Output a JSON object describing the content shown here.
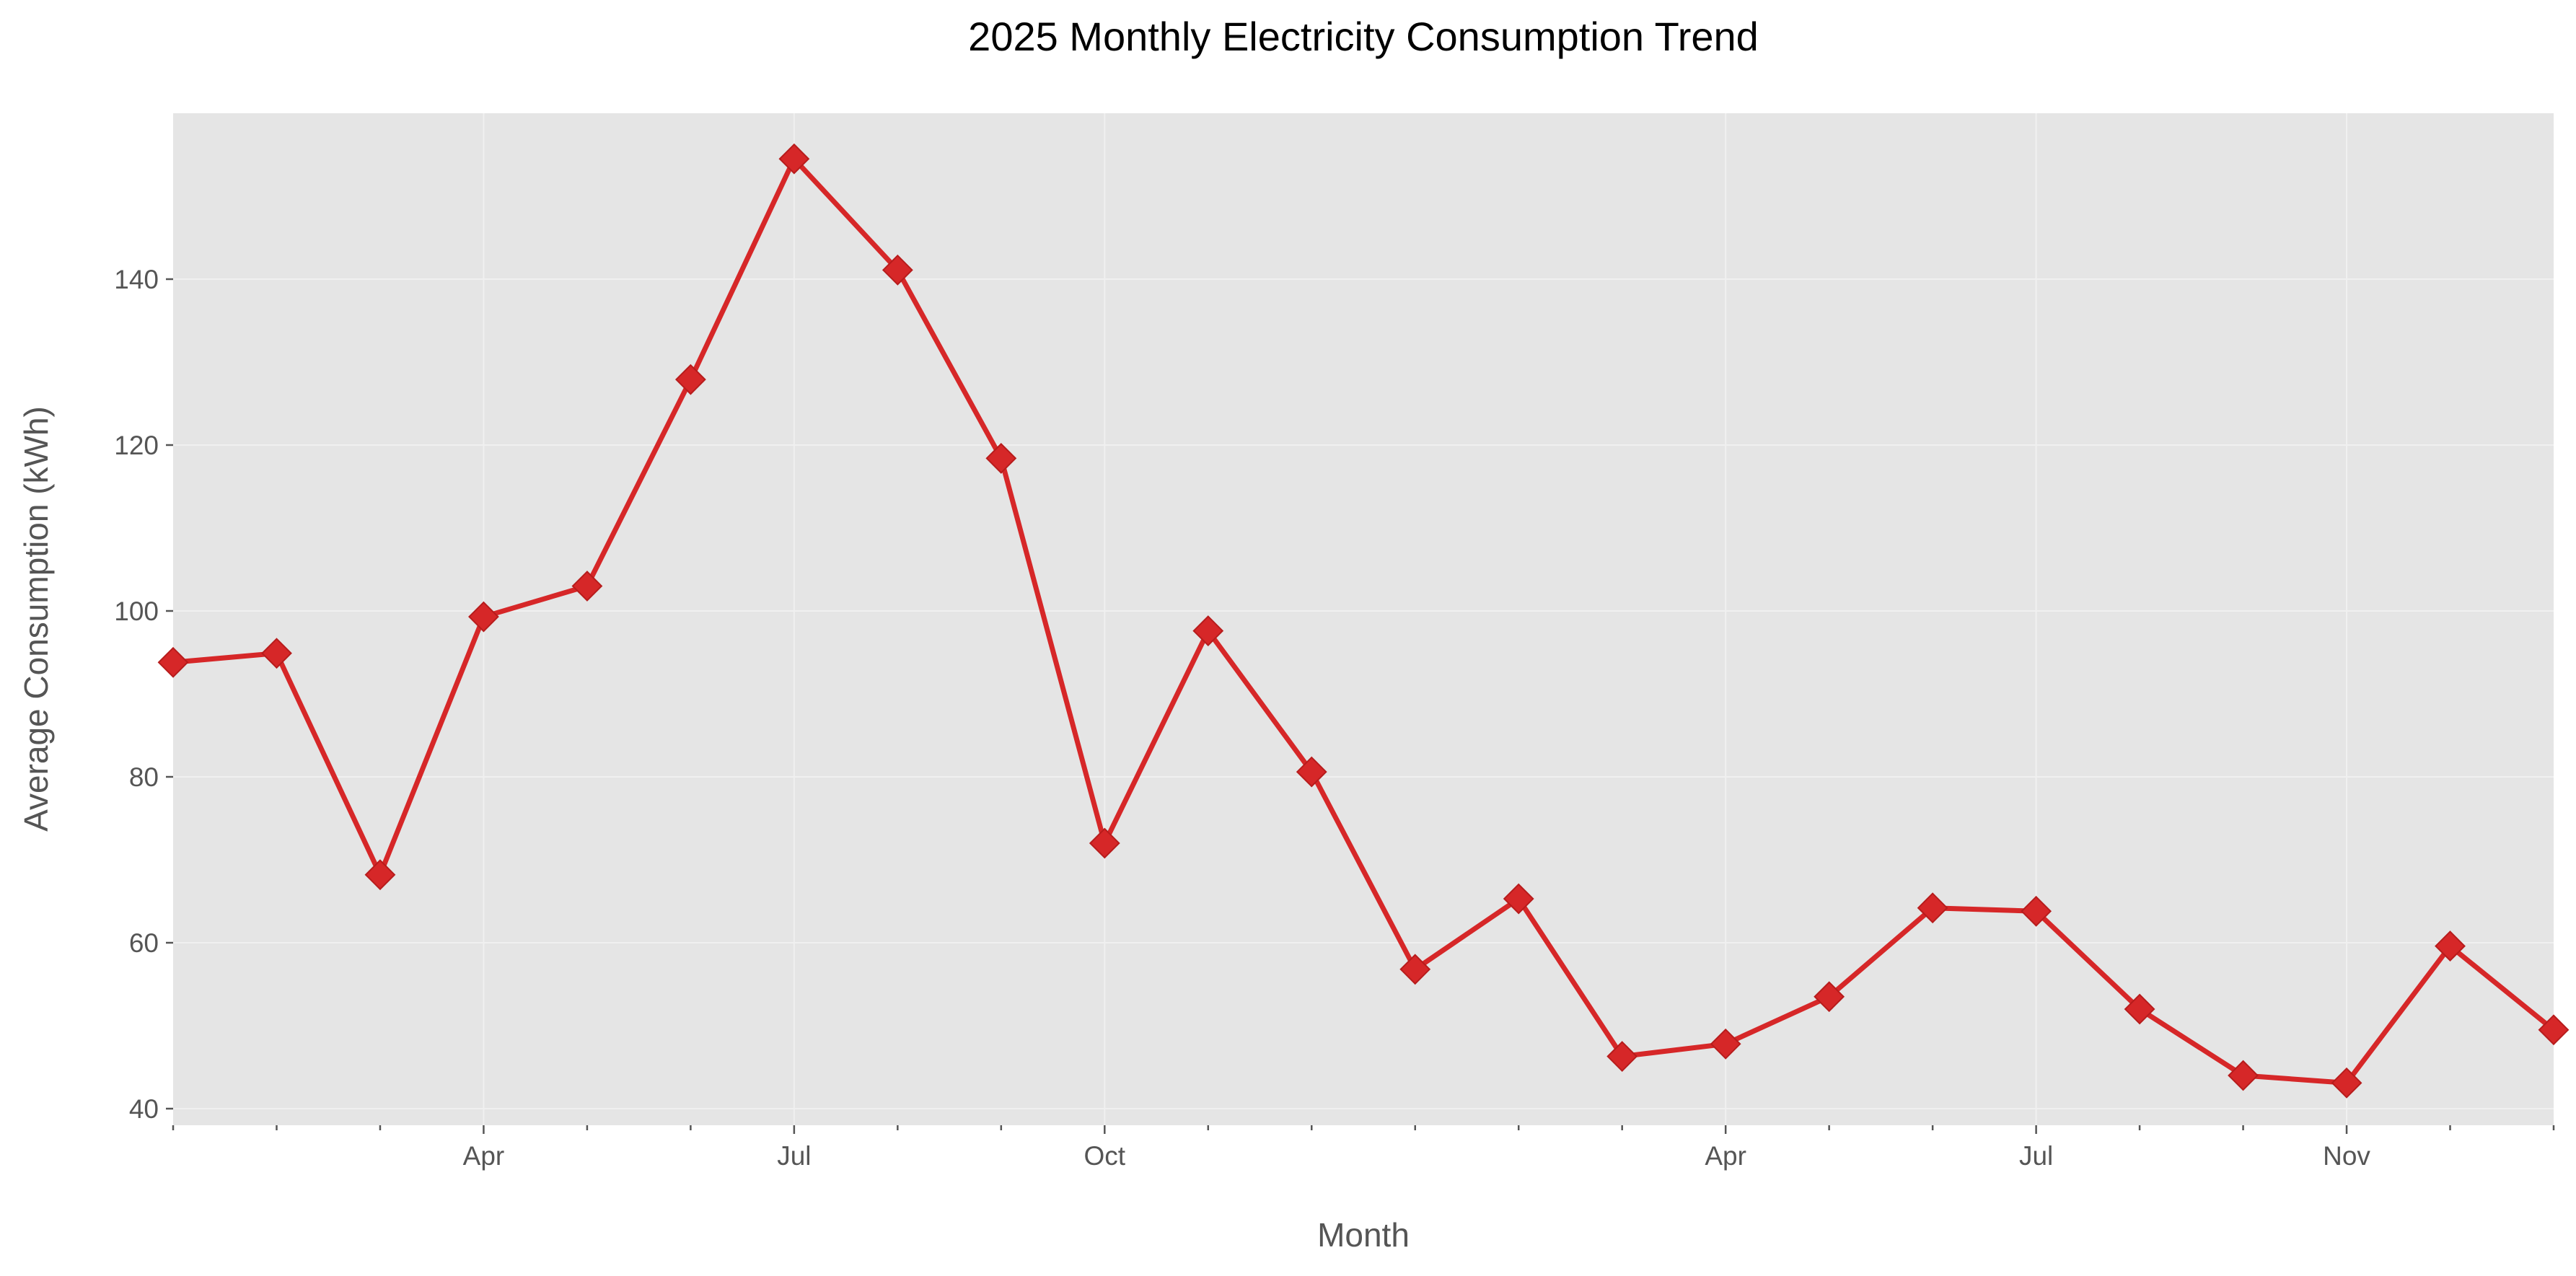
{
  "chart_data": {
    "type": "line",
    "title": "2025 Monthly Electricity Consumption Trend",
    "xlabel": "Month",
    "ylabel": "Average Consumption (kWh)",
    "ylim": [
      38,
      160
    ],
    "yticks": [
      40,
      60,
      80,
      100,
      120,
      140
    ],
    "grid": true,
    "x_tick_labels": [
      "",
      "",
      "",
      "Apr",
      "",
      "",
      "Jul",
      "",
      "",
      "Oct",
      "",
      "",
      "",
      "",
      "",
      "Apr",
      "",
      "",
      "Jul",
      "",
      "",
      "Nov",
      "",
      ""
    ],
    "series": [
      {
        "values": [
          93.8,
          94.9,
          68.2,
          99.3,
          103.0,
          127.9,
          154.5,
          141.1,
          118.4,
          72.0,
          97.6,
          80.6,
          56.8,
          65.3,
          46.3,
          47.8,
          53.5,
          64.2,
          63.8,
          52.0,
          44.0,
          43.1,
          59.6,
          49.5
        ],
        "color": "#d62728",
        "marker": "diamond"
      }
    ]
  }
}
